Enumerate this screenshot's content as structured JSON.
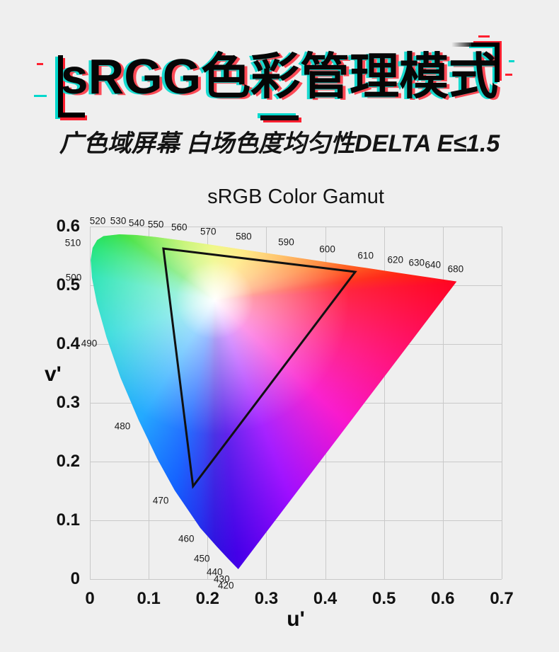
{
  "page": {
    "background": "#efefef"
  },
  "header": {
    "title": "sRGG色彩管理模式",
    "subtitle": "广色域屏幕 白场色度均匀性DELTA E≤1.5",
    "accent_cyan": "#00d8cc",
    "accent_red": "#ff2030"
  },
  "chart_data": {
    "type": "area",
    "subtype": "CIE 1976 u'v' chromaticity diagram with sRGB gamut triangle",
    "title": "sRGB Color Gamut",
    "xlabel": "u'",
    "ylabel": "v'",
    "xlim": [
      0,
      0.7
    ],
    "ylim": [
      0,
      0.6
    ],
    "x_ticks": [
      0,
      0.1,
      0.2,
      0.3,
      0.4,
      0.5,
      0.6,
      0.7
    ],
    "y_ticks": [
      0,
      0.1,
      0.2,
      0.3,
      0.4,
      0.5,
      0.6
    ],
    "grid": true,
    "grid_color": "#c9c9c9",
    "legend": false,
    "series": [
      {
        "name": "spectral_locus",
        "fill": "full-spectrum chromaticity gradient",
        "points": [
          [
            0.2522,
            0.0169
          ],
          [
            0.2347,
            0.035
          ],
          [
            0.2161,
            0.0549
          ],
          [
            0.1877,
            0.0871
          ],
          [
            0.1441,
            0.151
          ],
          [
            0.1147,
            0.2044
          ],
          [
            0.0828,
            0.2708
          ],
          [
            0.0521,
            0.3427
          ],
          [
            0.0282,
            0.4117
          ],
          [
            0.0119,
            0.4699
          ],
          [
            0.0035,
            0.5131
          ],
          [
            0.0014,
            0.5432
          ],
          [
            0.0046,
            0.5639
          ],
          [
            0.0123,
            0.577
          ],
          [
            0.0231,
            0.5837
          ],
          [
            0.0501,
            0.5868
          ],
          [
            0.0792,
            0.5856
          ],
          [
            0.1127,
            0.5821
          ],
          [
            0.1531,
            0.5766
          ],
          [
            0.2026,
            0.5694
          ],
          [
            0.2623,
            0.5604
          ],
          [
            0.3316,
            0.5501
          ],
          [
            0.4035,
            0.5393
          ],
          [
            0.4692,
            0.5296
          ],
          [
            0.5203,
            0.5219
          ],
          [
            0.5565,
            0.5165
          ],
          [
            0.583,
            0.5125
          ],
          [
            0.6234,
            0.5065
          ]
        ]
      },
      {
        "name": "srgb_gamut_triangle",
        "stroke": "#111111",
        "points": [
          [
            0.125,
            0.5625
          ],
          [
            0.451,
            0.5229
          ],
          [
            0.1754,
            0.1579
          ]
        ]
      }
    ],
    "white_point": {
      "u": 0.212,
      "v": 0.475
    },
    "wavelength_labels": [
      {
        "text": "420",
        "u": 0.2313,
        "v": -0.0108
      },
      {
        "text": "430",
        "u": 0.2241,
        "v": 0.0
      },
      {
        "text": "440",
        "u": 0.212,
        "v": 0.012
      },
      {
        "text": "450",
        "u": 0.1904,
        "v": 0.0349
      },
      {
        "text": "460",
        "u": 0.1639,
        "v": 0.0687
      },
      {
        "text": "470",
        "u": 0.1205,
        "v": 0.1337
      },
      {
        "text": "480",
        "u": 0.0554,
        "v": 0.2602
      },
      {
        "text": "490",
        "u": -0.0012,
        "v": 0.4012
      },
      {
        "text": "500",
        "u": -0.0277,
        "v": 0.5133
      },
      {
        "text": "510",
        "u": -0.0289,
        "v": 0.5723
      },
      {
        "text": "520",
        "u": 0.0133,
        "v": 0.6096
      },
      {
        "text": "530",
        "u": 0.0482,
        "v": 0.6096
      },
      {
        "text": "540",
        "u": 0.0795,
        "v": 0.606
      },
      {
        "text": "550",
        "u": 0.112,
        "v": 0.6036
      },
      {
        "text": "560",
        "u": 0.1518,
        "v": 0.5988
      },
      {
        "text": "570",
        "u": 0.2012,
        "v": 0.5916
      },
      {
        "text": "580",
        "u": 0.2614,
        "v": 0.5831
      },
      {
        "text": "590",
        "u": 0.3337,
        "v": 0.5735
      },
      {
        "text": "600",
        "u": 0.4036,
        "v": 0.5614
      },
      {
        "text": "610",
        "u": 0.4687,
        "v": 0.5506
      },
      {
        "text": "620",
        "u": 0.5193,
        "v": 0.5434
      },
      {
        "text": "630",
        "u": 0.5554,
        "v": 0.5386
      },
      {
        "text": "640",
        "u": 0.5831,
        "v": 0.5349
      },
      {
        "text": "680",
        "u": 0.6217,
        "v": 0.5277
      }
    ]
  }
}
